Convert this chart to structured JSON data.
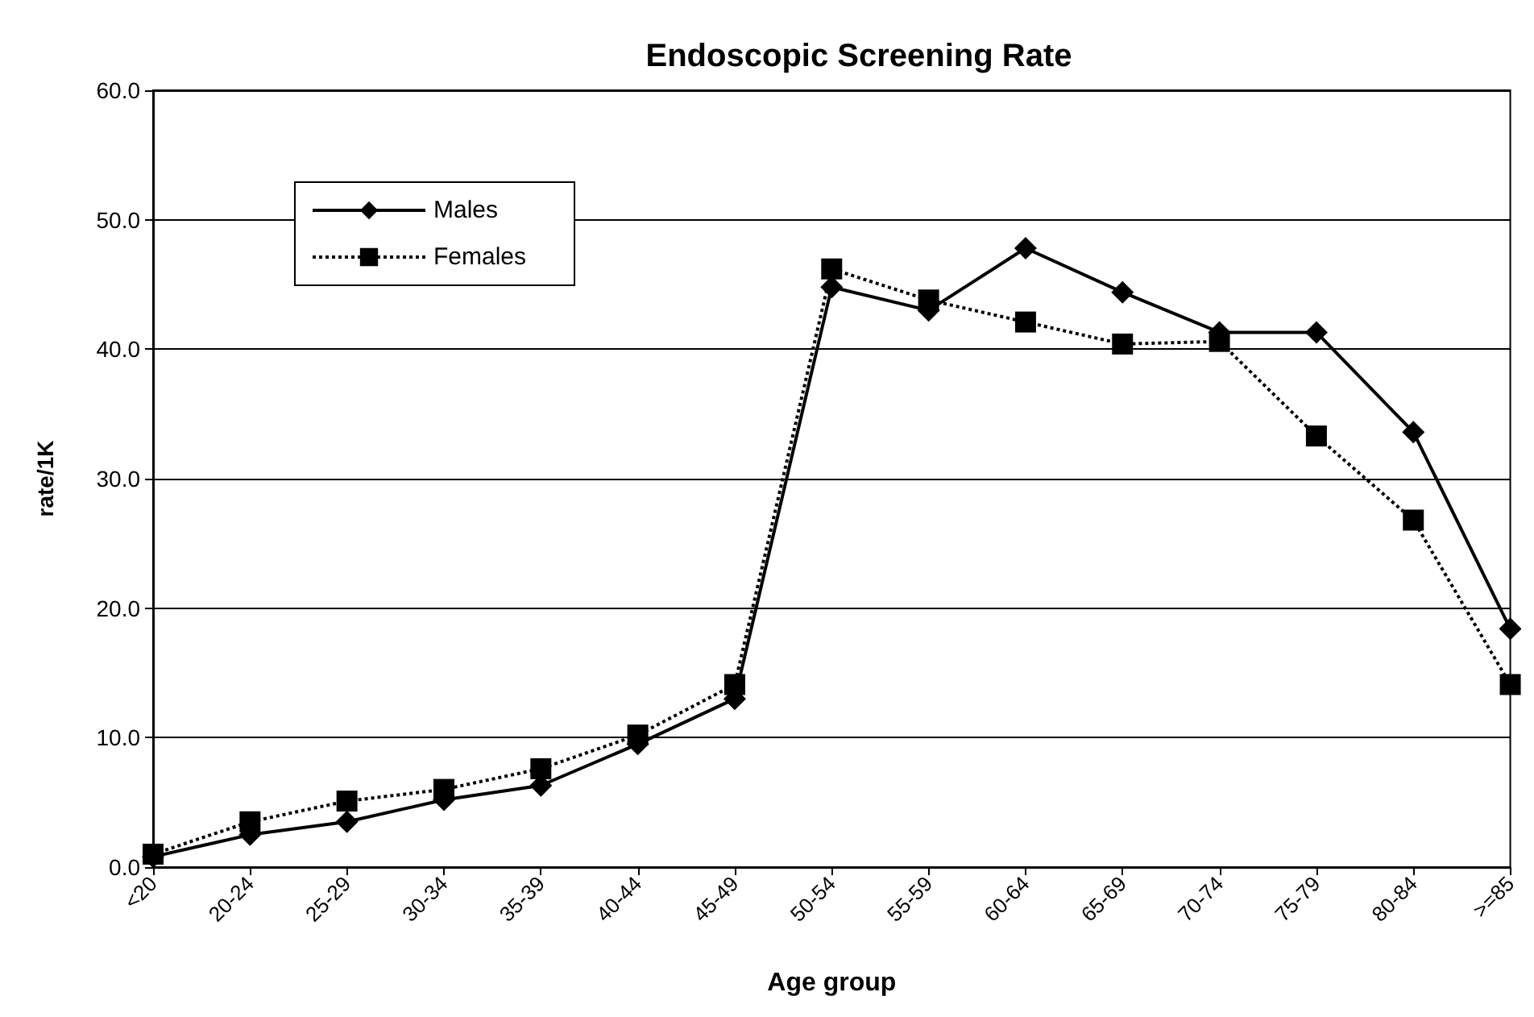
{
  "chart_data": {
    "type": "line",
    "title": "Endoscopic Screening Rate",
    "xlabel": "Age group",
    "ylabel": "rate/1K",
    "categories": [
      "<20",
      "20-24",
      "25-29",
      "30-34",
      "35-39",
      "40-44",
      "45-49",
      "50-54",
      "55-59",
      "60-64",
      "65-69",
      "70-74",
      "75-79",
      "80-84",
      ">=85"
    ],
    "series": [
      {
        "name": "Males",
        "color": "#000000",
        "marker": "diamond",
        "line_style": "solid",
        "values": [
          0.8,
          2.5,
          3.5,
          5.2,
          6.3,
          9.5,
          13.0,
          44.8,
          43.0,
          47.8,
          44.4,
          41.3,
          41.3,
          33.6,
          18.4
        ]
      },
      {
        "name": "Females",
        "color": "#000000",
        "marker": "square",
        "line_style": "dotted",
        "values": [
          1.0,
          3.5,
          5.1,
          6.0,
          7.6,
          10.2,
          14.1,
          46.2,
          43.8,
          42.1,
          40.4,
          40.6,
          33.3,
          26.8,
          14.1
        ]
      }
    ],
    "ylim": [
      0,
      60
    ],
    "yticks": [
      {
        "value": 0,
        "label": "0.0"
      },
      {
        "value": 10,
        "label": "10.0"
      },
      {
        "value": 20,
        "label": "20.0"
      },
      {
        "value": 30,
        "label": "30.0"
      },
      {
        "value": 40,
        "label": "40.0"
      },
      {
        "value": 50,
        "label": "50.0"
      },
      {
        "value": 60,
        "label": "60.0"
      }
    ],
    "grid": "y",
    "legend": "top left"
  }
}
